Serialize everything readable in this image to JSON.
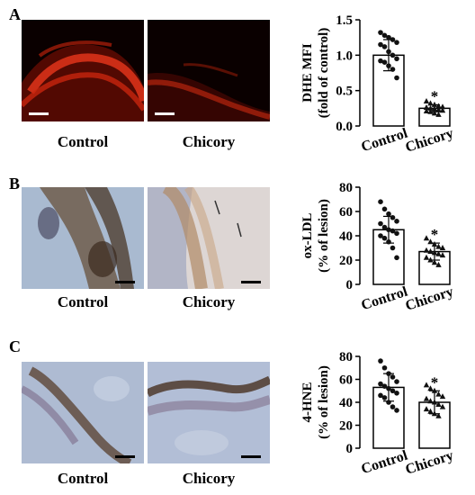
{
  "panels": [
    {
      "letter": "A",
      "images": [
        {
          "caption": "Control",
          "stain": "dhe-red"
        },
        {
          "caption": "Chicory",
          "stain": "dhe-red"
        }
      ]
    },
    {
      "letter": "B",
      "images": [
        {
          "caption": "Control",
          "stain": "ihc-brown"
        },
        {
          "caption": "Chicory",
          "stain": "ihc-brown"
        }
      ]
    },
    {
      "letter": "C",
      "images": [
        {
          "caption": "Control",
          "stain": "ihc-brown"
        },
        {
          "caption": "Chicory",
          "stain": "ihc-brown"
        }
      ]
    }
  ],
  "colors": {
    "control_fill": "#ffffff",
    "chicory_fill": "#ffffff",
    "point": "#111111",
    "dhe": "#d42a12",
    "ihc_bg": "#b7c4d6"
  },
  "chart_data": [
    {
      "type": "bar",
      "categories": [
        "Control",
        "Chicory"
      ],
      "values": [
        1.0,
        0.25
      ],
      "errors": [
        0.22,
        0.05
      ],
      "ylabel_lines": [
        "DHE MFI",
        "(fold of control)"
      ],
      "ylim": [
        0,
        1.5
      ],
      "yticks": [
        "0.0",
        "0.5",
        "1.0",
        "1.5"
      ],
      "significance": [
        "",
        "*"
      ],
      "markers": [
        "circle",
        "triangle"
      ],
      "points": [
        [
          1.32,
          1.28,
          1.25,
          1.22,
          1.18,
          1.15,
          1.12,
          1.05,
          1.0,
          0.95,
          0.92,
          0.9,
          0.85,
          0.8,
          0.68
        ],
        [
          0.35,
          0.32,
          0.3,
          0.28,
          0.27,
          0.26,
          0.25,
          0.24,
          0.23,
          0.22,
          0.21,
          0.2,
          0.18,
          0.16
        ]
      ]
    },
    {
      "type": "bar",
      "categories": [
        "Control",
        "Chicory"
      ],
      "values": [
        45,
        27
      ],
      "errors": [
        11,
        7
      ],
      "ylabel_lines": [
        "ox-LDL",
        "(% of lesion)"
      ],
      "ylim": [
        0,
        80
      ],
      "yticks": [
        "0",
        "20",
        "40",
        "60",
        "80"
      ],
      "significance": [
        "",
        "*"
      ],
      "markers": [
        "circle",
        "triangle"
      ],
      "points": [
        [
          68,
          62,
          58,
          55,
          52,
          50,
          47,
          45,
          44,
          42,
          40,
          38,
          35,
          30,
          22
        ],
        [
          38,
          35,
          33,
          31,
          30,
          28,
          27,
          26,
          25,
          24,
          22,
          20,
          18,
          16
        ]
      ]
    },
    {
      "type": "bar",
      "categories": [
        "Control",
        "Chicory"
      ],
      "values": [
        53,
        40
      ],
      "errors": [
        12,
        10
      ],
      "ylabel_lines": [
        "4-HNE",
        "(% of lesion)"
      ],
      "ylim": [
        0,
        80
      ],
      "yticks": [
        "0",
        "20",
        "40",
        "60",
        "80"
      ],
      "significance": [
        "",
        "*"
      ],
      "markers": [
        "circle",
        "triangle"
      ],
      "points": [
        [
          76,
          70,
          65,
          62,
          58,
          56,
          54,
          52,
          50,
          48,
          46,
          44,
          40,
          36,
          33
        ],
        [
          55,
          52,
          50,
          47,
          45,
          43,
          41,
          40,
          38,
          36,
          34,
          32,
          30,
          28
        ]
      ]
    }
  ]
}
